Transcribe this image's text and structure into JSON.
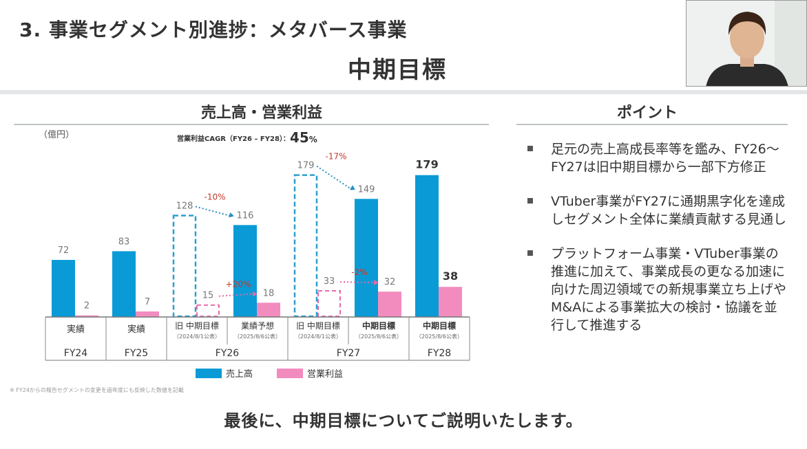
{
  "header": {
    "title": "3. 事業セグメント別進捗：メタバース事業",
    "subtitle": "中期目標"
  },
  "chart_section": {
    "title": "売上高・営業利益",
    "unit": "（億円）",
    "cagr_label": "営業利益CAGR（FY26 – FY28）：",
    "cagr_value": "45",
    "cagr_pct": "%"
  },
  "points_section": {
    "title": "ポイント",
    "items": [
      "足元の売上高成長率等を鑑み、FY26～FY27は旧中期目標から一部下方修正",
      "VTuber事業がFY27に通期黒字化を達成しセグメント全体に業績貢献する見通し",
      "プラットフォーム事業・VTuber事業の推進に加えて、事業成長の更なる加速に向けた周辺領域での新規事業立ち上げやM&Aによる事業拡大の検討・協議を並行して推進する"
    ]
  },
  "footnote": "※ FY24からの報告セグメントの変更を過年度にも反映した数値を記載",
  "caption": "最後に、中期目標についてご説明いたします。",
  "colors": {
    "sales": "#0a9bd6",
    "profit": "#f28cbf",
    "revision_sales": "#2a8fc0",
    "revision_neg": "#c0392b"
  },
  "chart_data": {
    "type": "bar",
    "title": "売上高・営業利益",
    "ylabel": "（億円）",
    "ylim": [
      0,
      190
    ],
    "series": [
      {
        "name": "売上高",
        "values": [
          72,
          83,
          128,
          116,
          179,
          149,
          179
        ],
        "styles": [
          "solid",
          "solid",
          "dashed",
          "solid",
          "dashed",
          "solid",
          "solid"
        ]
      },
      {
        "name": "営業利益",
        "values": [
          2,
          7,
          15,
          18,
          33,
          32,
          38
        ],
        "styles": [
          "solid",
          "solid",
          "dashed",
          "solid",
          "dashed",
          "solid",
          "solid"
        ]
      }
    ],
    "labels": {
      "sales": [
        "72",
        "83",
        "128",
        "116",
        "179",
        "149",
        "179"
      ],
      "profit": [
        "2",
        "7",
        "15",
        "18",
        "33",
        "32",
        "38"
      ]
    },
    "emphasis": [
      false,
      false,
      false,
      false,
      false,
      false,
      true
    ],
    "categories": [
      {
        "label": "実績",
        "note": "",
        "bold": false
      },
      {
        "label": "実績",
        "note": "",
        "bold": false
      },
      {
        "label": "旧 中期目標",
        "note": "（2024/8/1公表）",
        "bold": false
      },
      {
        "label": "業績予想",
        "note": "（2025/8/6公表）",
        "bold": false
      },
      {
        "label": "旧 中期目標",
        "note": "（2024/8/1公表）",
        "bold": false
      },
      {
        "label": "中期目標",
        "note": "（2025/8/6公表）",
        "bold": true
      },
      {
        "label": "中期目標",
        "note": "（2025/8/6公表）",
        "bold": true
      }
    ],
    "groups": [
      {
        "label": "FY24",
        "span": [
          0,
          0
        ]
      },
      {
        "label": "FY25",
        "span": [
          1,
          1
        ]
      },
      {
        "label": "FY26",
        "span": [
          2,
          3
        ]
      },
      {
        "label": "FY27",
        "span": [
          4,
          5
        ]
      },
      {
        "label": "FY28",
        "span": [
          6,
          6
        ]
      }
    ],
    "annotations": [
      {
        "text": "-10%",
        "series": "売上高",
        "from": 2,
        "to": 3,
        "color": "#c0392b"
      },
      {
        "text": "+20%",
        "series": "営業利益",
        "from": 2,
        "to": 3,
        "color": "#c0392b"
      },
      {
        "text": "-17%",
        "series": "売上高",
        "from": 4,
        "to": 5,
        "color": "#c0392b"
      },
      {
        "text": "-2%",
        "series": "営業利益",
        "from": 4,
        "to": 5,
        "color": "#c0392b"
      }
    ],
    "legend": [
      "売上高",
      "営業利益"
    ]
  }
}
